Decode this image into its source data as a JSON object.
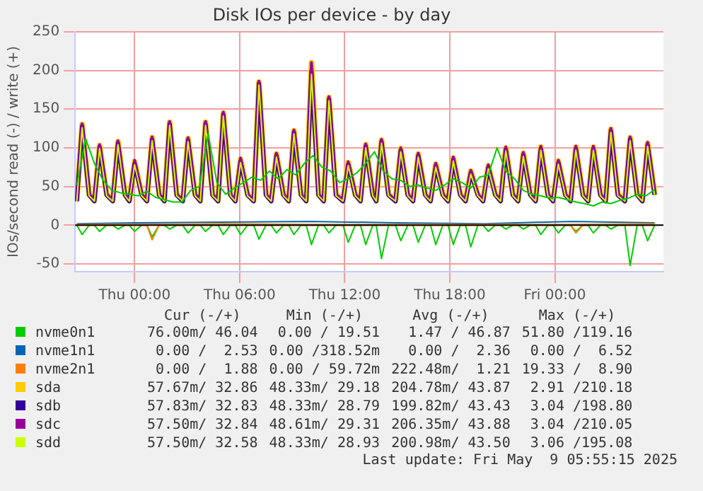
{
  "chart_data": {
    "type": "line",
    "title": "Disk IOs per device - by day",
    "ylabel": "IOs/second read (-) / write (+)",
    "xlim": [
      "2025-05-07T20:36",
      "2025-05-09T06:12"
    ],
    "xticks": [
      {
        "value": "2025-05-08T00:00",
        "label": "Thu 00:00"
      },
      {
        "value": "2025-05-08T06:00",
        "label": "Thu 06:00"
      },
      {
        "value": "2025-05-08T12:00",
        "label": "Thu 12:00"
      },
      {
        "value": "2025-05-08T18:00",
        "label": "Thu 18:00"
      },
      {
        "value": "2025-05-09T00:00",
        "label": "Fri 00:00"
      }
    ],
    "ylim": [
      -60,
      250
    ],
    "yticks": [
      -50,
      0,
      50,
      100,
      150,
      200,
      250
    ],
    "grid": true,
    "legend": "bottom",
    "ref_lines": [
      {
        "axis": "y",
        "value": 0,
        "color": "#000000"
      }
    ],
    "x": [
      "2025-05-07T20:42",
      "2025-05-07T21:00",
      "2025-05-07T21:24",
      "2025-05-07T21:42",
      "2025-05-07T22:00",
      "2025-05-07T22:24",
      "2025-05-07T22:45",
      "2025-05-07T23:03",
      "2025-05-07T23:27",
      "2025-05-07T23:42",
      "2025-05-08T00:00",
      "2025-05-08T00:24",
      "2025-05-08T00:42",
      "2025-05-08T01:00",
      "2025-05-08T01:24",
      "2025-05-08T01:42",
      "2025-05-08T02:00",
      "2025-05-08T02:24",
      "2025-05-08T02:45",
      "2025-05-08T03:03",
      "2025-05-08T03:27",
      "2025-05-08T03:45",
      "2025-05-08T04:03",
      "2025-05-08T04:27",
      "2025-05-08T04:46",
      "2025-05-08T05:04",
      "2025-05-08T05:28",
      "2025-05-08T05:45",
      "2025-05-08T06:03",
      "2025-05-08T06:27",
      "2025-05-08T06:48",
      "2025-05-08T07:06",
      "2025-05-08T07:30",
      "2025-05-08T07:48",
      "2025-05-08T08:06",
      "2025-05-08T08:30",
      "2025-05-08T08:48",
      "2025-05-08T09:06",
      "2025-05-08T09:30",
      "2025-05-08T09:48",
      "2025-05-08T10:06",
      "2025-05-08T10:30",
      "2025-05-08T10:48",
      "2025-05-08T11:06",
      "2025-05-08T11:30",
      "2025-05-08T11:54",
      "2025-05-08T12:12",
      "2025-05-08T12:36",
      "2025-05-08T12:54",
      "2025-05-08T13:12",
      "2025-05-08T13:36",
      "2025-05-08T13:48",
      "2025-05-08T14:06",
      "2025-05-08T14:30",
      "2025-05-08T14:54",
      "2025-05-08T15:12",
      "2025-05-08T15:36",
      "2025-05-08T15:54",
      "2025-05-08T16:12",
      "2025-05-08T16:36",
      "2025-05-08T16:54",
      "2025-05-08T17:12",
      "2025-05-08T17:36",
      "2025-05-08T17:54",
      "2025-05-08T18:12",
      "2025-05-08T18:36",
      "2025-05-08T18:54",
      "2025-05-08T19:12",
      "2025-05-08T19:36",
      "2025-05-08T19:54",
      "2025-05-08T20:12",
      "2025-05-08T20:36",
      "2025-05-08T20:54",
      "2025-05-08T21:12",
      "2025-05-08T21:36",
      "2025-05-08T21:54",
      "2025-05-08T22:12",
      "2025-05-08T22:36",
      "2025-05-08T22:54",
      "2025-05-08T23:12",
      "2025-05-08T23:36",
      "2025-05-08T23:54",
      "2025-05-09T00:12",
      "2025-05-09T00:36",
      "2025-05-09T00:54",
      "2025-05-09T01:12",
      "2025-05-09T01:36",
      "2025-05-09T01:54",
      "2025-05-09T02:12",
      "2025-05-09T02:36",
      "2025-05-09T02:54",
      "2025-05-09T03:12",
      "2025-05-09T03:36",
      "2025-05-09T04:00",
      "2025-05-09T04:18",
      "2025-05-09T04:42",
      "2025-05-09T05:00",
      "2025-05-09T05:18",
      "2025-05-09T05:42"
    ],
    "series": [
      {
        "name": "nvme0n1",
        "color": "#00cc00",
        "x": [
          "2025-05-07T20:42",
          "2025-05-07T21:12",
          "2025-05-07T21:42",
          "2025-05-07T22:12",
          "2025-05-07T22:42",
          "2025-05-07T23:12",
          "2025-05-07T23:42",
          "2025-05-08T00:12",
          "2025-05-08T00:42",
          "2025-05-08T01:12",
          "2025-05-08T01:42",
          "2025-05-08T02:12",
          "2025-05-08T02:42",
          "2025-05-08T03:12",
          "2025-05-08T03:42",
          "2025-05-08T04:12",
          "2025-05-08T04:42",
          "2025-05-08T05:12",
          "2025-05-08T05:42",
          "2025-05-08T06:12",
          "2025-05-08T06:42",
          "2025-05-08T07:12",
          "2025-05-08T07:42",
          "2025-05-08T08:12",
          "2025-05-08T08:42",
          "2025-05-08T09:12",
          "2025-05-08T09:42",
          "2025-05-08T10:12",
          "2025-05-08T10:42",
          "2025-05-08T11:12",
          "2025-05-08T11:42",
          "2025-05-08T12:12",
          "2025-05-08T12:42",
          "2025-05-08T13:12",
          "2025-05-08T13:42",
          "2025-05-08T14:12",
          "2025-05-08T14:42",
          "2025-05-08T15:12",
          "2025-05-08T15:42",
          "2025-05-08T16:12",
          "2025-05-08T16:42",
          "2025-05-08T17:12",
          "2025-05-08T17:42",
          "2025-05-08T18:12",
          "2025-05-08T18:42",
          "2025-05-08T19:12",
          "2025-05-08T19:42",
          "2025-05-08T20:12",
          "2025-05-08T20:42",
          "2025-05-08T21:12",
          "2025-05-08T21:42",
          "2025-05-08T22:12",
          "2025-05-08T22:42",
          "2025-05-08T23:12",
          "2025-05-08T23:42",
          "2025-05-09T00:12",
          "2025-05-09T00:42",
          "2025-05-09T01:12",
          "2025-05-09T01:42",
          "2025-05-09T02:12",
          "2025-05-09T02:42",
          "2025-05-09T03:12",
          "2025-05-09T03:42",
          "2025-05-09T04:12",
          "2025-05-09T04:42",
          "2025-05-09T05:12",
          "2025-05-09T05:42"
        ],
        "values": [
          52,
          112,
          80,
          58,
          45,
          42,
          40,
          38,
          44,
          36,
          33,
          30,
          30,
          45,
          50,
          118,
          55,
          40,
          48,
          55,
          62,
          58,
          70,
          60,
          72,
          65,
          80,
          90,
          75,
          70,
          55,
          60,
          68,
          80,
          95,
          70,
          60,
          58,
          50,
          52,
          48,
          45,
          52,
          60,
          55,
          48,
          62,
          65,
          100,
          70,
          60,
          45,
          40,
          38,
          35,
          36,
          33,
          30,
          28,
          25,
          30,
          28,
          32,
          35,
          40,
          38,
          46
        ]
      },
      {
        "color": "#00cc00",
        "values": [
          0,
          -12,
          0,
          0,
          -8,
          0,
          0,
          -5,
          0,
          0,
          -8,
          0,
          0,
          -15,
          0,
          0,
          -5,
          0,
          0,
          -10,
          0,
          0,
          -8,
          0,
          0,
          -12,
          0,
          0,
          -12,
          0,
          0,
          -18,
          0,
          0,
          -10,
          0,
          0,
          -12,
          0,
          0,
          -25,
          0,
          0,
          -10,
          0,
          0,
          -22,
          0,
          0,
          -25,
          0,
          0,
          -43,
          0,
          0,
          -20,
          0,
          0,
          -22,
          0,
          0,
          -25,
          0,
          0,
          -25,
          0,
          0,
          -28,
          0,
          0,
          -8,
          0,
          0,
          -5,
          0,
          0,
          -5,
          0,
          0,
          -12,
          0,
          0,
          -10,
          0,
          0,
          -8,
          0,
          0,
          -10,
          0,
          0,
          -5,
          0,
          0,
          -52,
          0,
          0,
          -20,
          0
        ]
      },
      {
        "name": "nvme1n1",
        "color": "#0066b3",
        "x": [
          "2025-05-07T20:42",
          "2025-05-08T00:00",
          "2025-05-08T05:00",
          "2025-05-08T10:00",
          "2025-05-08T15:00",
          "2025-05-08T20:00",
          "2025-05-09T01:00",
          "2025-05-09T05:42"
        ],
        "values": [
          2,
          3,
          4,
          5,
          3,
          2,
          5,
          3
        ]
      },
      {
        "name": "nvme2n1",
        "color": "#ff8000",
        "x": [
          "2025-05-07T20:42",
          "2025-05-08T00:00",
          "2025-05-08T05:00",
          "2025-05-08T10:00",
          "2025-05-08T15:00",
          "2025-05-08T20:00",
          "2025-05-09T01:00",
          "2025-05-09T05:42"
        ],
        "values": [
          1,
          1,
          2,
          1,
          1,
          1,
          1,
          2
        ]
      },
      {
        "color": "#ff8000",
        "x": [
          "2025-05-07T20:42",
          "2025-05-08T00:42",
          "2025-05-08T01:00",
          "2025-05-08T01:24",
          "2025-05-09T00:54",
          "2025-05-09T01:12",
          "2025-05-09T01:36",
          "2025-05-09T05:42"
        ],
        "values": [
          0,
          0,
          -19,
          0,
          0,
          -10,
          0,
          0
        ]
      },
      {
        "name": "sda",
        "color": "#ffcc00",
        "values": [
          32,
          130,
          40,
          32,
          103,
          40,
          32,
          108,
          40,
          32,
          82,
          40,
          32,
          113,
          40,
          32,
          133,
          40,
          32,
          112,
          40,
          32,
          133,
          40,
          32,
          145,
          40,
          32,
          85,
          40,
          32,
          185,
          40,
          32,
          92,
          40,
          32,
          122,
          40,
          32,
          210,
          40,
          32,
          165,
          40,
          32,
          81,
          40,
          32,
          104,
          40,
          32,
          110,
          40,
          32,
          99,
          40,
          32,
          92,
          40,
          32,
          79,
          40,
          32,
          87,
          40,
          32,
          70,
          40,
          32,
          77,
          40,
          32,
          100,
          40,
          32,
          93,
          40,
          32,
          101,
          40,
          32,
          83,
          40,
          32,
          101,
          40,
          32,
          101,
          40,
          32,
          124,
          40,
          32,
          113,
          40,
          32,
          106,
          40
        ]
      },
      {
        "name": "sdb",
        "color": "#330099",
        "values": [
          31,
          128,
          39,
          31,
          101,
          39,
          31,
          106,
          39,
          31,
          80,
          39,
          31,
          111,
          39,
          31,
          131,
          39,
          31,
          110,
          39,
          31,
          131,
          39,
          31,
          143,
          39,
          31,
          83,
          39,
          31,
          183,
          39,
          31,
          90,
          39,
          31,
          120,
          39,
          31,
          199,
          39,
          31,
          163,
          39,
          31,
          79,
          39,
          31,
          102,
          39,
          31,
          108,
          39,
          31,
          97,
          39,
          31,
          90,
          39,
          31,
          77,
          39,
          31,
          85,
          39,
          31,
          68,
          39,
          31,
          75,
          39,
          31,
          98,
          39,
          31,
          91,
          39,
          31,
          99,
          39,
          31,
          81,
          39,
          31,
          99,
          39,
          31,
          99,
          39,
          31,
          122,
          39,
          31,
          111,
          39,
          31,
          104,
          39
        ]
      },
      {
        "name": "sdc",
        "color": "#990099",
        "values": [
          32,
          131,
          40,
          32,
          104,
          40,
          32,
          109,
          40,
          32,
          84,
          40,
          32,
          114,
          40,
          32,
          134,
          40,
          32,
          113,
          40,
          32,
          134,
          40,
          32,
          146,
          40,
          32,
          87,
          40,
          32,
          186,
          40,
          32,
          93,
          40,
          32,
          123,
          40,
          32,
          210,
          40,
          32,
          166,
          40,
          32,
          82,
          40,
          32,
          105,
          40,
          32,
          111,
          40,
          32,
          100,
          40,
          32,
          93,
          40,
          32,
          80,
          40,
          32,
          88,
          40,
          32,
          71,
          40,
          32,
          78,
          40,
          32,
          101,
          40,
          32,
          94,
          40,
          32,
          102,
          40,
          32,
          84,
          40,
          32,
          102,
          40,
          32,
          102,
          40,
          32,
          125,
          40,
          32,
          114,
          40,
          32,
          107,
          40
        ]
      },
      {
        "name": "sdd",
        "color": "#ccff00",
        "values": [
          31,
          126,
          38,
          31,
          99,
          38,
          31,
          104,
          38,
          31,
          78,
          38,
          31,
          109,
          38,
          31,
          129,
          38,
          31,
          108,
          38,
          31,
          129,
          38,
          31,
          141,
          38,
          31,
          81,
          38,
          31,
          181,
          38,
          31,
          88,
          38,
          31,
          118,
          38,
          31,
          195,
          38,
          31,
          161,
          38,
          31,
          77,
          38,
          31,
          100,
          38,
          31,
          106,
          38,
          31,
          95,
          38,
          31,
          88,
          38,
          31,
          75,
          38,
          31,
          83,
          38,
          31,
          66,
          38,
          31,
          73,
          38,
          31,
          96,
          38,
          31,
          89,
          38,
          31,
          97,
          38,
          31,
          79,
          38,
          31,
          97,
          38,
          31,
          97,
          38,
          31,
          120,
          38,
          31,
          109,
          38,
          31,
          102,
          38
        ]
      }
    ],
    "annotations": [
      "Cur (-/+)",
      "Min (-/+)",
      "Avg (-/+)",
      "Max (-/+)",
      "76.00m/ 46.04",
      "0.00 / 19.51",
      "1.47 / 46.87",
      "51.80 /119.16",
      "0.00 /  2.53",
      "0.00 /318.52m",
      "0.00 /  2.36",
      "0.00 /  6.52",
      "0.00 /  1.88",
      "0.00 / 59.72m",
      "222.48m/  1.21",
      "19.33 /  8.90",
      "57.67m/ 32.86",
      "48.33m/ 29.18",
      "204.78m/ 43.87",
      "2.91 /210.18",
      "57.83m/ 32.83",
      "48.33m/ 28.79",
      "199.82m/ 43.43",
      "3.04 /198.80",
      "57.50m/ 32.84",
      "48.61m/ 29.31",
      "206.35m/ 43.88",
      "3.04 /210.05",
      "57.50m/ 32.58",
      "48.33m/ 28.93",
      "200.98m/ 43.50",
      "3.06 /195.08",
      "Last update: Fri May  9 05:55:15 2025"
    ]
  }
}
